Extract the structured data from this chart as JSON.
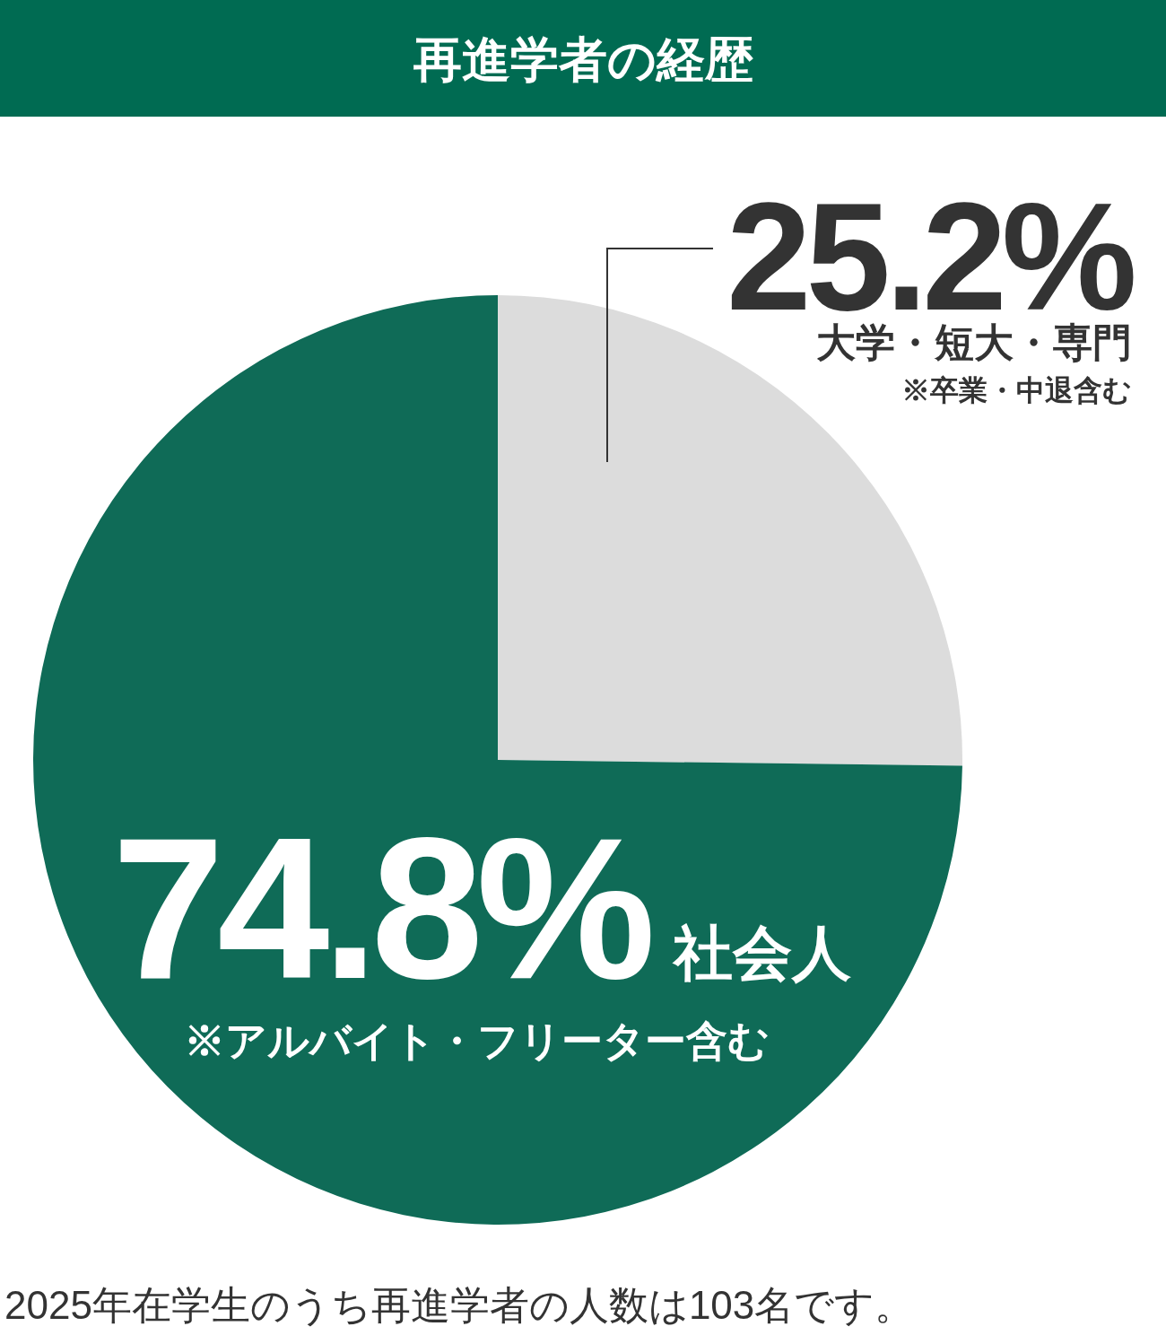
{
  "chart_data": {
    "type": "pie",
    "title": "再進学者の経歴",
    "categories": [
      "大学・短大・専門",
      "社会人"
    ],
    "values": [
      25.2,
      74.8
    ],
    "colors": [
      "#dcdcdc",
      "#0f6b57"
    ],
    "value_labels": [
      "25.2%",
      "74.8%"
    ],
    "annotations": [
      "※卒業・中退含む",
      "※アルバイト・フリーター含む",
      "2025年在学生のうち再進学者の人数は103名です。"
    ]
  }
}
